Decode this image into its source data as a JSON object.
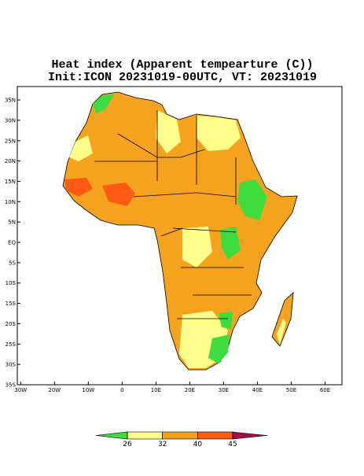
{
  "map": {
    "title": "Heat index (Apparent tempearture (C))",
    "subtitle": "Init:ICON 20231019-00UTC, VT: 20231019",
    "xlim": [
      -31,
      65
    ],
    "ylim": [
      -35,
      38.3
    ],
    "xticks": [
      {
        "value": -30,
        "label": "30W"
      },
      {
        "value": -20,
        "label": "20W"
      },
      {
        "value": -10,
        "label": "10W"
      },
      0,
      {
        "value": 10,
        "label": "10E"
      },
      {
        "value": 20,
        "label": "20E"
      },
      {
        "value": 30,
        "label": "30E"
      },
      {
        "value": 40,
        "label": "40E"
      },
      {
        "value": 50,
        "label": "50E"
      },
      {
        "value": 60,
        "label": "60E"
      }
    ],
    "yticks": [
      {
        "value": 35,
        "label": "35N"
      },
      {
        "value": 30,
        "label": "30N"
      },
      {
        "value": 25,
        "label": "25N"
      },
      {
        "value": 20,
        "label": "20N"
      },
      {
        "value": 15,
        "label": "15N"
      },
      {
        "value": 10,
        "label": "10N"
      },
      {
        "value": 5,
        "label": "5N"
      },
      {
        "value": 0,
        "label": "EQ"
      },
      {
        "value": -5,
        "label": "5S"
      },
      {
        "value": -10,
        "label": "10S"
      },
      {
        "value": -15,
        "label": "15S"
      },
      {
        "value": -20,
        "label": "20S"
      },
      {
        "value": -25,
        "label": "25S"
      },
      {
        "value": -30,
        "label": "30S"
      },
      {
        "value": -35,
        "label": "35S"
      }
    ],
    "colorbar": {
      "levels": [
        26,
        32,
        40,
        45
      ],
      "colors": [
        "#3fdc3f",
        "#ffff8c",
        "#f5a31e",
        "#ff5a14",
        "#a0104a"
      ]
    }
  }
}
